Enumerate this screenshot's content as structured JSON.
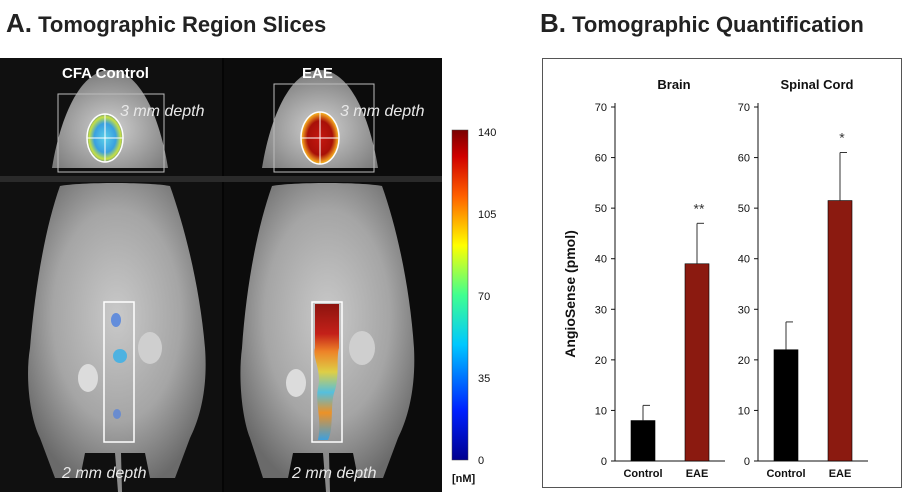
{
  "panel_a": {
    "letter": "A.",
    "title": "Tomographic Region Slices",
    "labels": {
      "control": "CFA Control",
      "eae": "EAE"
    },
    "depth_top": "3 mm depth",
    "depth_bottom": "2 mm depth",
    "colorbar": {
      "ticks": [
        "140",
        "105",
        "70",
        "35",
        "0"
      ],
      "unit": "[nM]"
    }
  },
  "panel_b": {
    "letter": "B.",
    "title": "Tomographic Quantification"
  },
  "colors": {
    "control": "#000000",
    "eae": "#8b1a10"
  },
  "chart_data": [
    {
      "type": "bar",
      "title": "Brain",
      "ylabel": "AngioSense (pmol)",
      "ylim": [
        0,
        70
      ],
      "yticks": [
        "0",
        "10",
        "20",
        "30",
        "40",
        "50",
        "60",
        "70"
      ],
      "categories": [
        "Control",
        "EAE"
      ],
      "values": [
        8,
        39
      ],
      "errors": [
        3,
        8
      ],
      "significance": [
        "",
        "**"
      ]
    },
    {
      "type": "bar",
      "title": "Spinal Cord",
      "ylabel": "",
      "ylim": [
        0,
        70
      ],
      "yticks": [
        "0",
        "10",
        "20",
        "30",
        "40",
        "50",
        "60",
        "70"
      ],
      "categories": [
        "Control",
        "EAE"
      ],
      "values": [
        22,
        51.5
      ],
      "errors": [
        5.5,
        9.5
      ],
      "significance": [
        "",
        "*"
      ]
    }
  ]
}
